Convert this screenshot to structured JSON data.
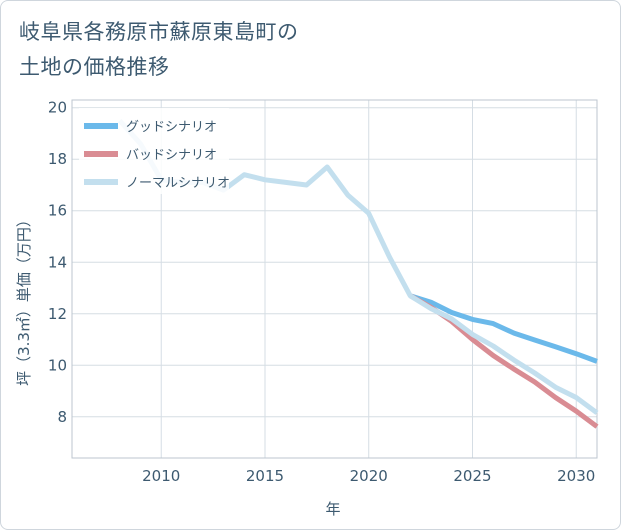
{
  "page": {
    "title_line1": "岐阜県各務原市蘇原東島町の",
    "title_line2": "土地の価格推移"
  },
  "chart_data": {
    "type": "line",
    "title": "岐阜県各務原市蘇原東島町の土地の価格推移",
    "xlabel": "年",
    "ylabel": "坪（3.3㎡）単価（万円）",
    "xlim": [
      2005.7,
      2031
    ],
    "ylim": [
      6.4,
      20.3
    ],
    "x_ticks": [
      2010,
      2015,
      2020,
      2025,
      2030
    ],
    "y_ticks": [
      8,
      10,
      12,
      14,
      16,
      18,
      20
    ],
    "grid": true,
    "legend_position": "top-left",
    "series": [
      {
        "name": "グッドシナリオ",
        "color": "#6bb9ea",
        "x": [
          2022,
          2023,
          2024,
          2025,
          2026,
          2027,
          2028,
          2029,
          2030,
          2031
        ],
        "y": [
          12.7,
          12.45,
          12.05,
          11.78,
          11.62,
          11.25,
          10.98,
          10.72,
          10.45,
          10.15
        ]
      },
      {
        "name": "バッドシナリオ",
        "color": "#d98c93",
        "x": [
          2022,
          2023,
          2024,
          2025,
          2026,
          2027,
          2028,
          2029,
          2030,
          2031
        ],
        "y": [
          12.7,
          12.25,
          11.7,
          11.0,
          10.38,
          9.85,
          9.35,
          8.75,
          8.22,
          7.62
        ]
      },
      {
        "name": "ノーマルシナリオ",
        "color": "#c3dfee",
        "x": [
          2008,
          2009,
          2010,
          2011,
          2012,
          2013,
          2014,
          2015,
          2016,
          2017,
          2018,
          2019,
          2020,
          2021,
          2022,
          2023,
          2024,
          2025,
          2026,
          2027,
          2028,
          2029,
          2030,
          2031
        ],
        "y": [
          19.5,
          18.6,
          17.2,
          17.1,
          17.1,
          16.8,
          17.4,
          17.2,
          17.1,
          17.0,
          17.7,
          16.6,
          15.9,
          14.2,
          12.7,
          12.2,
          11.8,
          11.2,
          10.75,
          10.2,
          9.7,
          9.15,
          8.75,
          8.15
        ]
      }
    ]
  }
}
